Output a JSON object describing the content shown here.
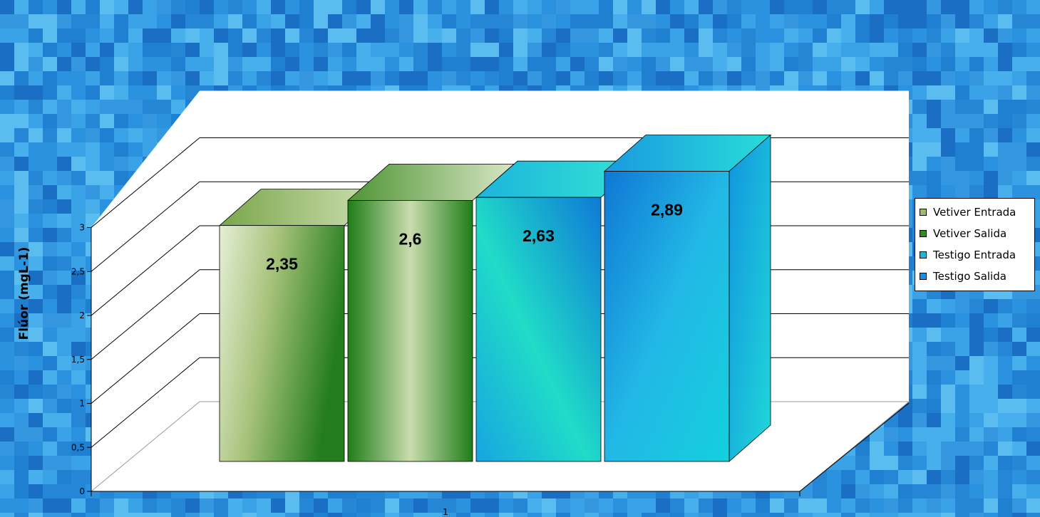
{
  "chart_data": {
    "type": "bar",
    "view": "3d-clustered",
    "categories": [
      "1"
    ],
    "ylabel": "Flúor (mgL-1)",
    "ylim": [
      0,
      3
    ],
    "yticks": [
      "0",
      "0,5",
      "1",
      "1,5",
      "2",
      "2,5",
      "3"
    ],
    "grid": true,
    "legend_position": "right",
    "series": [
      {
        "name": "Vetiver Entrada",
        "values": [
          2.35
        ],
        "label": "2,35",
        "color": "#8fb25a"
      },
      {
        "name": "Vetiver Salida",
        "values": [
          2.6
        ],
        "label": "2,6",
        "color": "#2e8b22"
      },
      {
        "name": "Testigo Entrada",
        "values": [
          2.63
        ],
        "label": "2,63",
        "color": "#19b9d8"
      },
      {
        "name": "Testigo Salida",
        "values": [
          2.89
        ],
        "label": "2,89",
        "color": "#1a8fe0"
      }
    ]
  }
}
